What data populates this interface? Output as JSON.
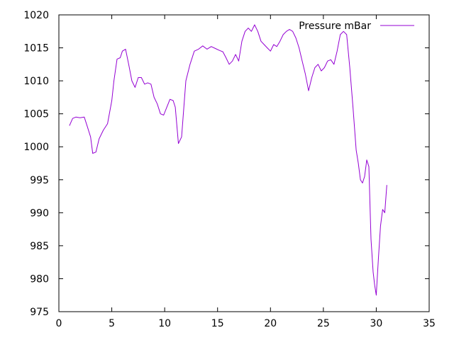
{
  "chart_data": {
    "type": "line",
    "title": "",
    "xlabel": "",
    "ylabel": "",
    "xlim": [
      0,
      35
    ],
    "ylim": [
      975,
      1020
    ],
    "xticks": [
      0,
      5,
      10,
      15,
      20,
      25,
      30,
      35
    ],
    "yticks": [
      975,
      980,
      985,
      990,
      995,
      1000,
      1005,
      1010,
      1015,
      1020
    ],
    "grid": false,
    "legend_position": "top-right",
    "series": [
      {
        "name": "Pressure mBar",
        "color": "#9400d3",
        "x": [
          1.0,
          1.3,
          1.6,
          2.0,
          2.4,
          2.7,
          3.0,
          3.2,
          3.5,
          3.8,
          4.2,
          4.6,
          5.0,
          5.2,
          5.5,
          5.8,
          6.0,
          6.3,
          6.6,
          6.9,
          7.2,
          7.5,
          7.8,
          8.1,
          8.4,
          8.7,
          9.0,
          9.3,
          9.6,
          9.9,
          10.2,
          10.5,
          10.8,
          11.0,
          11.3,
          11.6,
          12.0,
          12.4,
          12.8,
          13.2,
          13.6,
          14.0,
          14.4,
          14.8,
          15.2,
          15.5,
          15.8,
          16.1,
          16.4,
          16.7,
          17.0,
          17.3,
          17.6,
          17.9,
          18.2,
          18.5,
          18.8,
          19.1,
          19.4,
          19.7,
          20.0,
          20.3,
          20.6,
          20.9,
          21.2,
          21.5,
          21.8,
          22.1,
          22.4,
          22.7,
          23.0,
          23.3,
          23.6,
          23.9,
          24.2,
          24.5,
          24.8,
          25.1,
          25.4,
          25.7,
          26.0,
          26.3,
          26.6,
          26.9,
          27.2,
          27.5,
          27.8,
          28.1,
          28.3,
          28.5,
          28.7,
          28.9,
          29.1,
          29.3,
          29.5,
          29.7,
          29.85,
          30.0,
          30.2,
          30.4,
          30.6,
          30.8,
          31.0
        ],
        "values": [
          1003.2,
          1004.3,
          1004.5,
          1004.4,
          1004.5,
          1003.0,
          1001.5,
          999.0,
          999.2,
          1001.2,
          1002.5,
          1003.5,
          1007.0,
          1010.0,
          1013.3,
          1013.5,
          1014.5,
          1014.8,
          1012.5,
          1010.0,
          1009.0,
          1010.5,
          1010.5,
          1009.5,
          1009.7,
          1009.5,
          1007.5,
          1006.5,
          1005.0,
          1004.8,
          1006.0,
          1007.2,
          1007.0,
          1006.0,
          1000.5,
          1001.5,
          1010.0,
          1012.5,
          1014.5,
          1014.8,
          1015.3,
          1014.8,
          1015.2,
          1014.9,
          1014.6,
          1014.4,
          1013.5,
          1012.5,
          1013.0,
          1014.0,
          1013.0,
          1016.0,
          1017.5,
          1018.0,
          1017.5,
          1018.5,
          1017.5,
          1016.0,
          1015.5,
          1015.0,
          1014.5,
          1015.5,
          1015.2,
          1016.0,
          1017.0,
          1017.5,
          1017.8,
          1017.5,
          1016.5,
          1015.0,
          1013.0,
          1011.0,
          1008.5,
          1010.5,
          1012.0,
          1012.5,
          1011.5,
          1012.0,
          1013.0,
          1013.2,
          1012.5,
          1014.5,
          1017.0,
          1017.5,
          1017.0,
          1012.0,
          1006.0,
          999.5,
          997.5,
          995.0,
          994.5,
          995.5,
          998.0,
          997.0,
          986.0,
          981.0,
          979.0,
          977.5,
          983.0,
          988.0,
          990.5,
          990.0,
          994.2
        ]
      }
    ]
  }
}
